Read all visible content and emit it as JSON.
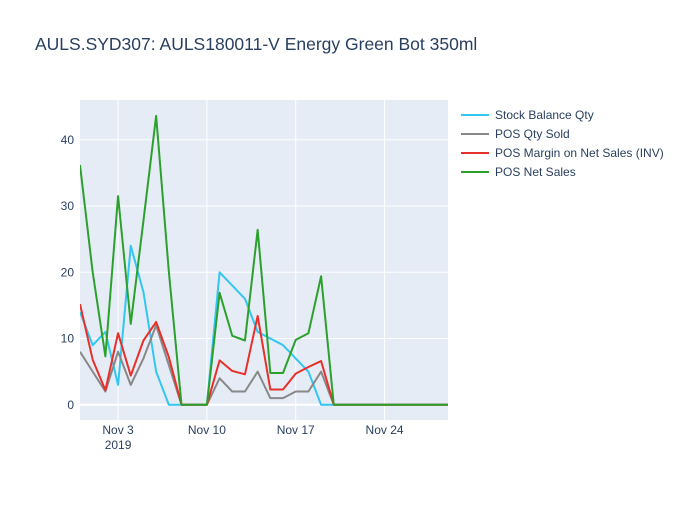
{
  "chart_data": {
    "type": "line",
    "title": "AULS.SYD307:  AULS180011-V Energy Green Bot 350ml",
    "xlabel": "",
    "ylabel": "",
    "x_range": [
      "2019-10-31",
      "2019-11-29"
    ],
    "ylim": [
      -2.3,
      46
    ],
    "grid": true,
    "legend_placement": "top-right",
    "x_ticks": [
      {
        "date": "2019-11-03",
        "label": "Nov 3",
        "sublabel": "2019"
      },
      {
        "date": "2019-11-10",
        "label": "Nov 10",
        "sublabel": ""
      },
      {
        "date": "2019-11-17",
        "label": "Nov 17",
        "sublabel": ""
      },
      {
        "date": "2019-11-24",
        "label": "Nov 24",
        "sublabel": ""
      }
    ],
    "y_ticks": [
      0,
      10,
      20,
      30,
      40
    ],
    "x": [
      "2019-10-31",
      "2019-11-01",
      "2019-11-02",
      "2019-11-03",
      "2019-11-04",
      "2019-11-05",
      "2019-11-06",
      "2019-11-07",
      "2019-11-08",
      "2019-11-09",
      "2019-11-10",
      "2019-11-11",
      "2019-11-12",
      "2019-11-13",
      "2019-11-14",
      "2019-11-15",
      "2019-11-16",
      "2019-11-17",
      "2019-11-18",
      "2019-11-19",
      "2019-11-20",
      "2019-11-21",
      "2019-11-22",
      "2019-11-23",
      "2019-11-24",
      "2019-11-25",
      "2019-11-26",
      "2019-11-27",
      "2019-11-28",
      "2019-11-29"
    ],
    "series": [
      {
        "name": "Stock Balance Qty",
        "color": "#33c6f2",
        "values": [
          14,
          9,
          11,
          3,
          24,
          17,
          5,
          0,
          0,
          0,
          0,
          20,
          18,
          16,
          11,
          10,
          9,
          7,
          5,
          0,
          0,
          0,
          0,
          0,
          0,
          0,
          0,
          0,
          0,
          0
        ]
      },
      {
        "name": "POS Qty Sold",
        "color": "#888888",
        "values": [
          8,
          5,
          2,
          8,
          3,
          7,
          12,
          6,
          0,
          0,
          0,
          4,
          2,
          2,
          5,
          1,
          1,
          2,
          2,
          5,
          0,
          0,
          0,
          0,
          0,
          0,
          0,
          0,
          0,
          0
        ]
      },
      {
        "name": "POS Margin on Net Sales (INV)",
        "color": "#e8302a",
        "values": [
          15.2,
          6.8,
          2.2,
          10.8,
          4.4,
          9.7,
          12.5,
          7.2,
          0,
          0,
          0,
          6.7,
          5.1,
          4.6,
          13.4,
          2.3,
          2.3,
          4.7,
          5.7,
          6.6,
          0,
          0,
          0,
          0,
          0,
          0,
          0,
          0,
          0,
          0
        ]
      },
      {
        "name": "POS Net Sales",
        "color": "#2ca02c",
        "values": [
          36.2,
          20.0,
          7.3,
          31.5,
          12.2,
          27.8,
          43.6,
          20.1,
          0,
          0,
          0,
          16.9,
          10.4,
          9.7,
          26.4,
          4.8,
          4.8,
          9.8,
          10.8,
          19.4,
          0,
          0,
          0,
          0,
          0,
          0,
          0,
          0,
          0,
          0
        ]
      }
    ]
  }
}
